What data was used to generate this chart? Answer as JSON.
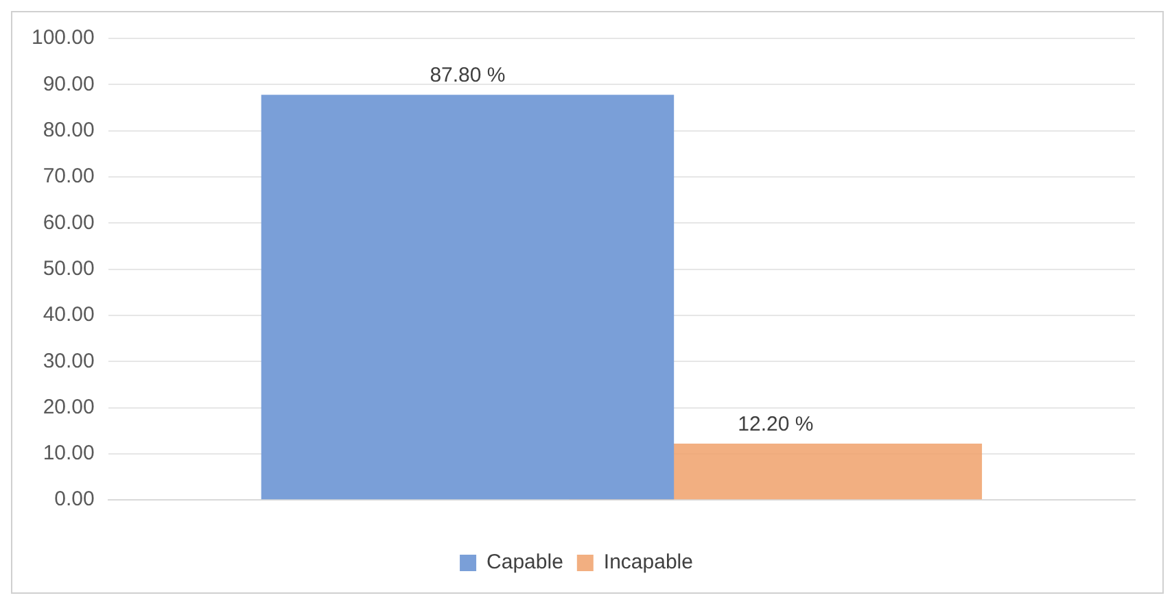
{
  "chart_data": {
    "type": "bar",
    "categories": [
      null
    ],
    "series": [
      {
        "name": "Capable",
        "color": "#7a9fd8",
        "values": [
          87.8
        ],
        "value_labels": [
          "87.80 %"
        ]
      },
      {
        "name": "Incapable",
        "color": "#f0a470",
        "values": [
          12.2
        ],
        "value_labels": [
          "12.20 %"
        ]
      }
    ],
    "ylim": [
      0,
      100
    ],
    "yticks": [
      {
        "value": 0,
        "label": "0.00"
      },
      {
        "value": 10,
        "label": "10.00"
      },
      {
        "value": 20,
        "label": "20.00"
      },
      {
        "value": 30,
        "label": "30.00"
      },
      {
        "value": 40,
        "label": "40.00"
      },
      {
        "value": 50,
        "label": "50.00"
      },
      {
        "value": 60,
        "label": "60.00"
      },
      {
        "value": 70,
        "label": "70.00"
      },
      {
        "value": 80,
        "label": "80.00"
      },
      {
        "value": 90,
        "label": "90.00"
      },
      {
        "value": 100,
        "label": "100.00"
      }
    ],
    "grid": "y",
    "legend": "bottom"
  }
}
